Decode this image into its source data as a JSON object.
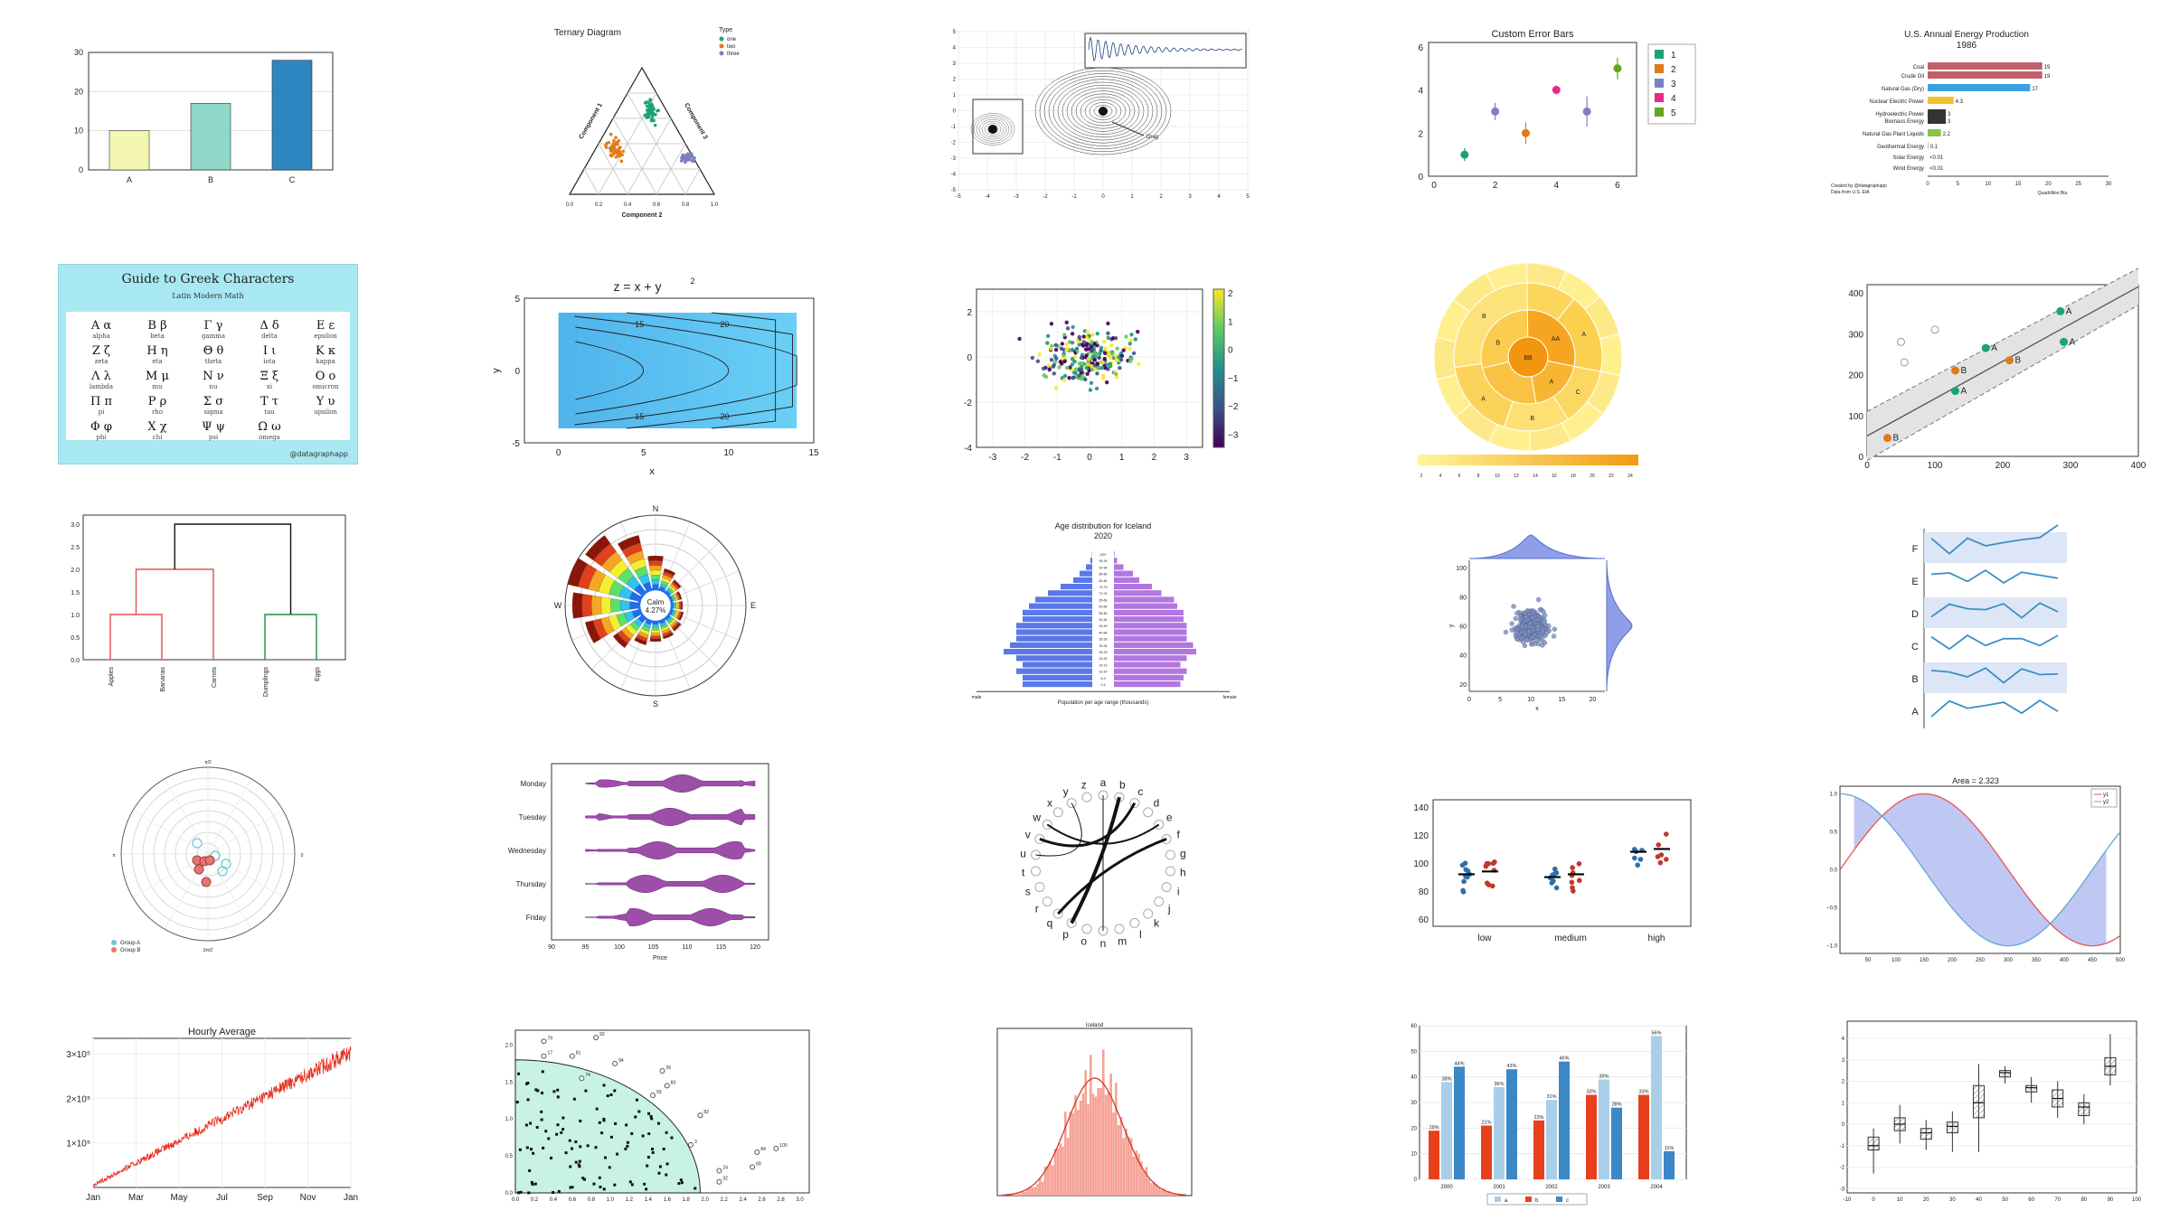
{
  "gallery": [
    {
      "kind": "bar3",
      "chart_data": {
        "type": "bar",
        "categories": [
          "A",
          "B",
          "C"
        ],
        "values": [
          10,
          17,
          28
        ],
        "colors": [
          "#f4f7b0",
          "#8fd8c7",
          "#2e86c1"
        ],
        "ylim": [
          0,
          30
        ],
        "yticks": [
          0,
          10,
          20,
          30
        ]
      }
    },
    {
      "kind": "ternary",
      "chart_data": {
        "type": "scatter",
        "title": "Ternary Diagram",
        "legend_title": "Type",
        "series": [
          {
            "name": "one",
            "color": "#1aa37a"
          },
          {
            "name": "two",
            "color": "#e07b1a"
          },
          {
            "name": "three",
            "color": "#7b7fc4"
          }
        ],
        "axes": [
          "Component 1",
          "Component 2",
          "Component 3"
        ],
        "ticks": [
          "0.0",
          "0.2",
          "0.4",
          "0.6",
          "0.8",
          "1.0"
        ]
      }
    },
    {
      "kind": "zoom",
      "chart_data": {
        "type": "line",
        "annotation": "Drag",
        "xticks": [
          -5,
          -4,
          -3,
          -2,
          -1,
          0,
          1,
          2,
          3,
          4,
          5
        ],
        "yticks": [
          -5,
          -4,
          -3,
          -2,
          -1,
          0,
          1,
          2,
          3,
          4,
          5
        ]
      }
    },
    {
      "kind": "errbars",
      "chart_data": {
        "type": "scatter",
        "title": "Custom Error Bars",
        "x": [
          1,
          2,
          3,
          4,
          5,
          6
        ],
        "y": [
          1.0,
          3.0,
          2.0,
          4.0,
          3.0,
          5.0
        ],
        "err": [
          0.3,
          0.4,
          0.5,
          0.2,
          0.7,
          0.5
        ],
        "colors": [
          "#1aa37a",
          "#7b7fc4",
          "#e07b1a",
          "#e7298a",
          "#7b7fc4",
          "#66a61e"
        ],
        "legend": [
          "1",
          "2",
          "3",
          "4",
          "5"
        ],
        "legend_colors": [
          "#1aa37a",
          "#e07b1a",
          "#7b7fc4",
          "#e7298a",
          "#66a61e"
        ],
        "xticks": [
          0,
          2,
          4,
          6
        ],
        "yticks": [
          0,
          2,
          4,
          6
        ]
      }
    },
    {
      "kind": "energy",
      "chart_data": {
        "type": "bar",
        "title": "U.S. Annual Energy Production",
        "subtitle": "1986",
        "categories": [
          "Coal",
          "Crude Oil",
          "Natural Gas (Dry)",
          "Nuclear Electric Power",
          "Hydroelectric Power",
          "Biomass Energy",
          "Natural Gas Plant Liquids",
          "Geothermal Energy",
          "Solar Energy",
          "Wind Energy"
        ],
        "values": [
          19,
          19,
          17,
          4.3,
          3,
          3,
          2.2,
          0.1,
          0.01,
          0.01
        ],
        "labels": [
          "19",
          "19",
          "17",
          "4.3",
          "3",
          "3",
          "2.2",
          "0.1",
          "<0.01",
          "<0.01"
        ],
        "colors": [
          "#c0606a",
          "#c0606a",
          "#3aa0e0",
          "#f2c12e",
          "#333333",
          "#333333",
          "#8bc34a",
          "#8bc34a",
          "#8bc34a",
          "#8bc34a"
        ],
        "xlabel": "Quadrillion Btu",
        "xticks": [
          0,
          5,
          10,
          15,
          20,
          25,
          30
        ],
        "credit": [
          "Created by @datagraphapp",
          "Data from U.S. EIA"
        ]
      }
    },
    {
      "kind": "greek",
      "title": "Guide to Greek Characters",
      "subtitle": "Latin Modern Math",
      "footer": "@datagraphapp",
      "cells": [
        {
          "g": "Α α",
          "n": "alpha"
        },
        {
          "g": "Β β",
          "n": "beta"
        },
        {
          "g": "Γ γ",
          "n": "gamma"
        },
        {
          "g": "Δ δ",
          "n": "delta"
        },
        {
          "g": "Ε ε",
          "n": "epsilon"
        },
        {
          "g": "Ζ ζ",
          "n": "zeta"
        },
        {
          "g": "Η η",
          "n": "eta"
        },
        {
          "g": "Θ θ",
          "n": "theta"
        },
        {
          "g": "Ι ι",
          "n": "iota"
        },
        {
          "g": "Κ κ",
          "n": "kappa"
        },
        {
          "g": "Λ λ",
          "n": "lambda"
        },
        {
          "g": "Μ μ",
          "n": "mu"
        },
        {
          "g": "Ν ν",
          "n": "nu"
        },
        {
          "g": "Ξ ξ",
          "n": "xi"
        },
        {
          "g": "Ο ο",
          "n": "omicron"
        },
        {
          "g": "Π π",
          "n": "pi"
        },
        {
          "g": "Ρ ρ",
          "n": "rho"
        },
        {
          "g": "Σ σ",
          "n": "sigma"
        },
        {
          "g": "Τ τ",
          "n": "tau"
        },
        {
          "g": "Υ υ",
          "n": "upsilon"
        },
        {
          "g": "Φ φ",
          "n": "phi"
        },
        {
          "g": "Χ χ",
          "n": "chi"
        },
        {
          "g": "Ψ ψ",
          "n": "psi"
        },
        {
          "g": "Ω ω",
          "n": "omega"
        }
      ]
    },
    {
      "kind": "contour",
      "chart_data": {
        "type": "heatmap",
        "title": "z = x + y",
        "title_sup": "2",
        "xlabel": "x",
        "ylabel": "y",
        "xticks": [
          0,
          5,
          10,
          15
        ],
        "yticks": [
          -5,
          0,
          5
        ],
        "levels": [
          5,
          10,
          15,
          20,
          25
        ]
      }
    },
    {
      "kind": "scatter_cb",
      "chart_data": {
        "type": "scatter",
        "xticks": [
          -3,
          -2,
          -1,
          0,
          1,
          2,
          3
        ],
        "yticks": [
          -4,
          -2,
          0,
          2
        ],
        "cbar_ticks": [
          "2",
          "1",
          "0",
          "−1",
          "−2",
          "−3"
        ]
      }
    },
    {
      "kind": "sunburst",
      "chart_data": {
        "type": "pie",
        "center_label": "BB",
        "ring1_labels": [
          "AA",
          "A",
          "B"
        ],
        "ring2_labels": [
          "A",
          "C",
          "B",
          "A",
          "B"
        ],
        "scale_ticks": [
          "2",
          "4",
          "6",
          "8",
          "10",
          "12",
          "14",
          "16",
          "18",
          "20",
          "22",
          "24"
        ]
      }
    },
    {
      "kind": "regression",
      "chart_data": {
        "type": "scatter",
        "points": [
          {
            "x": 30,
            "y": 45,
            "label": "B",
            "color": "#e07b1a"
          },
          {
            "x": 130,
            "y": 210,
            "label": "B",
            "color": "#e07b1a"
          },
          {
            "x": 130,
            "y": 160,
            "label": "A",
            "color": "#1aa37a"
          },
          {
            "x": 175,
            "y": 265,
            "label": "A",
            "color": "#1aa37a"
          },
          {
            "x": 210,
            "y": 235,
            "label": "B",
            "color": "#e07b1a"
          },
          {
            "x": 285,
            "y": 355,
            "label": "A",
            "color": "#1aa37a"
          },
          {
            "x": 290,
            "y": 280,
            "label": "A",
            "color": "#1aa37a"
          }
        ],
        "outliers": [
          {
            "x": 50,
            "y": 280
          },
          {
            "x": 55,
            "y": 230
          },
          {
            "x": 100,
            "y": 310
          }
        ],
        "xticks": [
          0,
          100,
          200,
          300,
          400
        ],
        "yticks": [
          0,
          100,
          200,
          300,
          400
        ]
      }
    },
    {
      "kind": "dendro",
      "chart_data": {
        "type": "line",
        "categories": [
          "Apples",
          "Bananas",
          "Carrots",
          "Dumplings",
          "Eggs"
        ],
        "yticks": [
          "0.0",
          "0.5",
          "1.0",
          "1.5",
          "2.0",
          "2.5",
          "3.0"
        ]
      }
    },
    {
      "kind": "windrose",
      "chart_data": {
        "type": "bar",
        "center_label": "Calm",
        "center_value": "4.27%",
        "directions": [
          "N",
          "E",
          "S",
          "W"
        ]
      }
    },
    {
      "kind": "pyramid",
      "chart_data": {
        "type": "bar",
        "title": "Age distribution for Iceland",
        "subtitle": "2020",
        "xlabel": "Population per age range (thousands)",
        "left_label": "male",
        "right_label": "female",
        "age_groups": [
          "0-4",
          "5-9",
          "10-14",
          "15-19",
          "20-24",
          "25-29",
          "30-34",
          "35-39",
          "40-44",
          "45-49",
          "50-54",
          "55-59",
          "60-64",
          "65-69",
          "70-74",
          "75-79",
          "80-84",
          "85-89",
          "90-94",
          "95-99",
          "100+"
        ],
        "male": [
          11,
          11,
          12,
          11,
          12,
          14,
          13,
          12,
          12,
          12,
          11,
          11,
          10,
          9,
          7,
          5,
          3,
          2,
          1,
          0.3,
          0.05
        ],
        "female": [
          10.5,
          11,
          11.5,
          10.5,
          11.5,
          13,
          12.5,
          11.5,
          11.5,
          11.5,
          11,
          11,
          10,
          9.5,
          7.5,
          6,
          4,
          3,
          1.5,
          0.5,
          0.1
        ]
      }
    },
    {
      "kind": "marginal",
      "chart_data": {
        "type": "scatter",
        "xlabel": "x",
        "ylabel": "y",
        "xticks": [
          0,
          5,
          10,
          15,
          20
        ],
        "yticks": [
          20,
          40,
          60,
          80,
          100
        ]
      }
    },
    {
      "kind": "ridges",
      "chart_data": {
        "type": "line",
        "categories": [
          "A",
          "B",
          "C",
          "D",
          "E",
          "F"
        ]
      }
    },
    {
      "kind": "polar",
      "chart_data": {
        "type": "scatter",
        "series": [
          {
            "name": "Group A",
            "color": "#6ec6d8"
          },
          {
            "name": "Group B",
            "color": "#e8766d"
          }
        ],
        "angle_labels": [
          "π/2",
          "0",
          "3π/2",
          "π"
        ]
      }
    },
    {
      "kind": "violin",
      "chart_data": {
        "type": "area",
        "categories": [
          "Monday",
          "Tuesday",
          "Wednesday",
          "Thursday",
          "Friday"
        ],
        "xlabel": "Price",
        "xticks": [
          90,
          95,
          100,
          105,
          110,
          115,
          120
        ]
      }
    },
    {
      "kind": "chord",
      "chart_data": {
        "type": "line",
        "nodes": [
          "a",
          "b",
          "c",
          "d",
          "e",
          "f",
          "g",
          "h",
          "i",
          "j",
          "k",
          "l",
          "m",
          "n",
          "o",
          "p",
          "q",
          "r",
          "s",
          "t",
          "u",
          "v",
          "w",
          "x",
          "y",
          "z"
        ]
      }
    },
    {
      "kind": "strip",
      "chart_data": {
        "type": "scatter",
        "categories": [
          "low",
          "medium",
          "high"
        ],
        "yticks": [
          60,
          80,
          100,
          120,
          140
        ]
      }
    },
    {
      "kind": "fillbetween",
      "chart_data": {
        "type": "line",
        "title": "Area = 2.323",
        "series": [
          {
            "name": "y1",
            "color": "#e8554e"
          },
          {
            "name": "y2",
            "color": "#5fa8d8"
          }
        ],
        "xticks": [
          50,
          100,
          150,
          200,
          250,
          300,
          350,
          400,
          450,
          500
        ],
        "yticks": [
          "1.0",
          "0.5",
          "0.0",
          "−0.5",
          "−1.0"
        ]
      }
    },
    {
      "kind": "hourly",
      "chart_data": {
        "type": "line",
        "title": "Hourly Average",
        "xticks": [
          "Jan",
          "Mar",
          "May",
          "Jul",
          "Sep",
          "Nov",
          "Jan"
        ],
        "yticks": [
          "1×10⁵",
          "2×10⁵",
          "3×10⁵"
        ]
      }
    },
    {
      "kind": "circlescatter",
      "chart_data": {
        "type": "scatter",
        "labels": [
          "79",
          "92",
          "17",
          "81",
          "74",
          "94",
          "26",
          "83",
          "93",
          "3",
          "24",
          "84",
          "69",
          "100",
          "32",
          "82"
        ],
        "xticks": [
          "0.0",
          "0.2",
          "0.4",
          "0.6",
          "0.8",
          "1.0",
          "1.2",
          "1.4",
          "1.6",
          "1.8",
          "2.0",
          "2.2",
          "2.4",
          "2.6",
          "2.8",
          "3.0"
        ],
        "yticks": [
          "0.0",
          "0.5",
          "1.0",
          "1.5",
          "2.0"
        ]
      }
    },
    {
      "kind": "hist",
      "chart_data": {
        "type": "bar",
        "title": "Iceland"
      }
    },
    {
      "kind": "groupbar",
      "chart_data": {
        "type": "bar",
        "categories": [
          "2000",
          "2001",
          "2002",
          "2003",
          "2004"
        ],
        "series": [
          {
            "name": "a",
            "color": "#a9cfe8",
            "values": [
              38,
              36,
              31,
              39,
              56
            ],
            "labels": [
              "38%",
              "36%",
              "31%",
              "39%",
              "56%"
            ]
          },
          {
            "name": "b",
            "color": "#e8401c",
            "values": [
              19,
              21,
              23,
              33,
              33
            ],
            "labels": [
              "19%",
              "21%",
              "23%",
              "33%",
              "33%"
            ]
          },
          {
            "name": "c",
            "color": "#3c87c5",
            "values": [
              44,
              43,
              46,
              28,
              11
            ],
            "labels": [
              "44%",
              "43%",
              "46%",
              "28%",
              "11%"
            ]
          }
        ],
        "yticks": [
          0,
          10,
          20,
          30,
          40,
          50,
          60
        ]
      }
    },
    {
      "kind": "boxes",
      "chart_data": {
        "type": "bar",
        "xticks": [
          -10,
          0,
          10,
          20,
          30,
          40,
          50,
          60,
          70,
          80,
          90,
          100
        ],
        "yticks": [
          -3,
          -2,
          -1,
          0,
          1,
          2,
          3,
          4
        ]
      }
    }
  ]
}
